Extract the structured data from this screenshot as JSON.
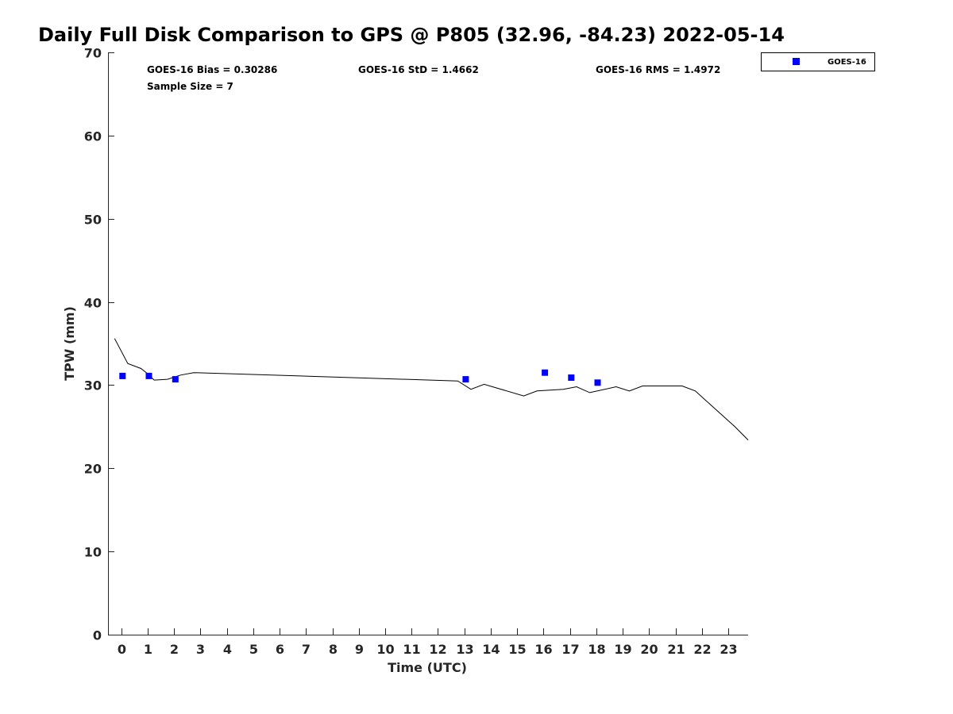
{
  "chart_data": {
    "type": "scatter",
    "title": "Daily Full Disk Comparison to GPS @ P805 (32.96, -84.23) 2022-05-14",
    "xlabel": "Time (UTC)",
    "ylabel": "TPW (mm)",
    "xlim": [
      -0.5,
      23.75
    ],
    "ylim": [
      0,
      70
    ],
    "x_ticks": [
      0,
      1,
      2,
      3,
      4,
      5,
      6,
      7,
      8,
      9,
      10,
      11,
      12,
      13,
      14,
      15,
      16,
      17,
      18,
      19,
      20,
      21,
      22,
      23
    ],
    "y_ticks": [
      0,
      10,
      20,
      30,
      40,
      50,
      60,
      70
    ],
    "grid": false,
    "legend_position": "top-right-outside",
    "stats": {
      "bias": "GOES-16 Bias = 0.30286",
      "std": "GOES-16 StD = 1.4662",
      "rms": "GOES-16 RMS = 1.4972",
      "sample_size": "Sample Size = 7"
    },
    "series": [
      {
        "name": "GOES-16",
        "kind": "markers",
        "color": "#0000ff",
        "marker": "square",
        "x": [
          0.05,
          1.05,
          2.05,
          13.05,
          16.05,
          17.05,
          18.05
        ],
        "y": [
          31.1,
          31.1,
          30.7,
          30.7,
          31.5,
          30.9,
          30.3
        ]
      },
      {
        "kind": "line",
        "color": "#000000",
        "x": [
          -0.25,
          0.25,
          0.75,
          0.95,
          1.25,
          1.75,
          2.25,
          2.75,
          12.75,
          13.25,
          13.75,
          15.25,
          15.75,
          16.75,
          17.25,
          17.75,
          18.75,
          19.25,
          19.75,
          21.25,
          21.75,
          23.25,
          23.75
        ],
        "y": [
          35.6,
          32.6,
          32.0,
          31.5,
          30.6,
          30.7,
          31.2,
          31.5,
          30.5,
          29.5,
          30.1,
          28.7,
          29.3,
          29.5,
          29.8,
          29.1,
          29.8,
          29.3,
          29.9,
          29.9,
          29.3,
          25.0,
          23.4
        ]
      }
    ]
  }
}
